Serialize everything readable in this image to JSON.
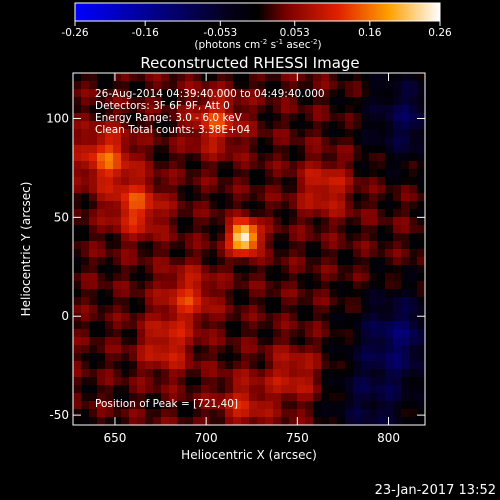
{
  "chart_data": {
    "type": "heatmap",
    "title": "Reconstructed RHESSI Image",
    "xlabel": "Heliocentric X (arcsec)",
    "ylabel": "Heliocentric Y (arcsec)",
    "xlim": [
      627,
      820
    ],
    "ylim": [
      -55,
      123
    ],
    "x_ticks": [
      {
        "value": 650,
        "label": "650"
      },
      {
        "value": 700,
        "label": "700"
      },
      {
        "value": 750,
        "label": "750"
      },
      {
        "value": 800,
        "label": "800"
      }
    ],
    "y_ticks": [
      {
        "value": 100,
        "label": "100"
      },
      {
        "value": 50,
        "label": "50"
      },
      {
        "value": 0,
        "label": "0"
      },
      {
        "value": -50,
        "label": "-50"
      }
    ],
    "colorbar": {
      "min": -0.26,
      "max": 0.26,
      "ticks": [
        {
          "value": -0.26,
          "label": "-0.26"
        },
        {
          "value": -0.16,
          "label": "-0.16"
        },
        {
          "value": -0.053,
          "label": "-0.053"
        },
        {
          "value": 0.053,
          "label": "0.053"
        },
        {
          "value": 0.16,
          "label": "0.16"
        },
        {
          "value": 0.26,
          "label": "0.26"
        }
      ],
      "unit_label_parts": [
        "(photons cm",
        "-2",
        " s",
        "-1",
        " asec",
        "-2",
        ")"
      ]
    },
    "info_lines": [
      "26-Aug-2014 04:39:40.000 to 04:49:40.000",
      "Detectors: 3F 6F 9F, Att 0",
      "Energy Range: 3.0 - 6.0 keV",
      "Clean     Total counts: 3.38E+04"
    ],
    "peak_label": "Position of Peak = [721,40]",
    "peak_position": [
      721,
      40
    ],
    "peak_value": 0.26,
    "secondary_sources": [
      {
        "x": 645,
        "y": 80,
        "value": 0.12
      },
      {
        "x": 662,
        "y": 55,
        "value": 0.11
      },
      {
        "x": 705,
        "y": 98,
        "value": 0.1
      },
      {
        "x": 690,
        "y": 10,
        "value": 0.09
      },
      {
        "x": 765,
        "y": 65,
        "value": 0.08
      },
      {
        "x": 678,
        "y": -15,
        "value": 0.08
      },
      {
        "x": 748,
        "y": -30,
        "value": 0.07
      },
      {
        "x": 720,
        "y": -45,
        "value": 0.07
      }
    ],
    "dark_regions": [
      {
        "x": 810,
        "y": 100,
        "value": -0.1
      },
      {
        "x": 805,
        "y": -10,
        "value": -0.12
      },
      {
        "x": 790,
        "y": -45,
        "value": -0.08
      }
    ]
  },
  "timestamp": "23-Jan-2017 13:52"
}
